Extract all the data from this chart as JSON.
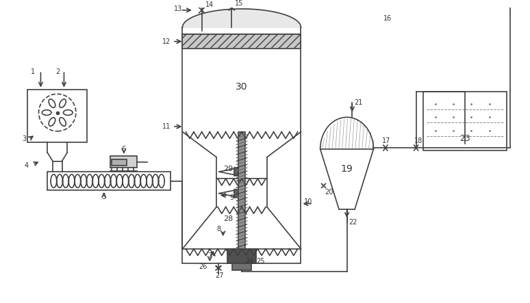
{
  "bg_color": "#ffffff",
  "line_color": "#404040",
  "label_color": "#333333",
  "title": "",
  "figsize": [
    7.74,
    4.43
  ],
  "dpi": 100
}
